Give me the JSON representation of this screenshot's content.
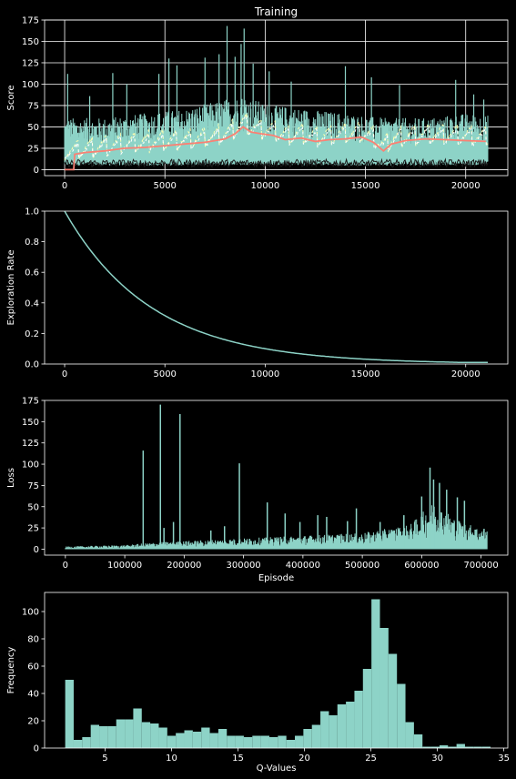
{
  "figure": {
    "title": "Training",
    "colors": {
      "background": "#000000",
      "axes": "#ffffff",
      "grid": "#ffffff",
      "primary": "#8dd3c7",
      "secondary": "#feffb3",
      "moving_average": "#fa8174",
      "minimum": "#1a1a1a"
    }
  },
  "chart_data": [
    {
      "type": "line",
      "title": "Training",
      "xlabel": "",
      "ylabel": "Score",
      "xlim": [
        -1000,
        22100
      ],
      "ylim": [
        -7,
        175
      ],
      "xticks": [
        0,
        5000,
        10000,
        15000,
        20000
      ],
      "yticks": [
        0,
        25,
        50,
        75,
        100,
        125,
        150,
        175
      ],
      "grid": true,
      "series": [
        {
          "role": "score_band",
          "color": "#8dd3c7",
          "x_range": [
            0,
            21100
          ],
          "upper_envelope": [
            [
              0,
              55
            ],
            [
              2000,
              55
            ],
            [
              4000,
              60
            ],
            [
              6000,
              65
            ],
            [
              8000,
              75
            ],
            [
              9000,
              80
            ],
            [
              10000,
              70
            ],
            [
              12000,
              65
            ],
            [
              14000,
              60
            ],
            [
              16000,
              55
            ],
            [
              18000,
              55
            ],
            [
              20000,
              60
            ],
            [
              21100,
              58
            ]
          ],
          "lower_envelope": [
            [
              0,
              8
            ],
            [
              5000,
              8
            ],
            [
              10000,
              9
            ],
            [
              15000,
              8
            ],
            [
              21100,
              9
            ]
          ],
          "spikes": [
            [
              150,
              112
            ],
            [
              1250,
              86
            ],
            [
              2400,
              113
            ],
            [
              3100,
              100
            ],
            [
              4700,
              112
            ],
            [
              5200,
              130
            ],
            [
              5600,
              122
            ],
            [
              7000,
              131
            ],
            [
              7700,
              135
            ],
            [
              8100,
              168
            ],
            [
              8500,
              132
            ],
            [
              8800,
              147
            ],
            [
              8950,
              165
            ],
            [
              9400,
              124
            ],
            [
              10200,
              115
            ],
            [
              11300,
              103
            ],
            [
              14000,
              121
            ],
            [
              15300,
              108
            ],
            [
              16700,
              99
            ],
            [
              19500,
              105
            ],
            [
              20400,
              88
            ],
            [
              20900,
              82
            ]
          ]
        },
        {
          "role": "minimum",
          "color": "#1a1a1a",
          "x_range": [
            0,
            21100
          ],
          "value_range": [
            3,
            12
          ]
        },
        {
          "role": "mean",
          "color": "#feffb3",
          "x_range": [
            0,
            21100
          ],
          "oscillation": [
            20,
            60
          ]
        },
        {
          "role": "median",
          "color": "#ffffff",
          "x_range": [
            0,
            21100
          ],
          "oscillation": [
            18,
            55
          ]
        },
        {
          "role": "moving_average",
          "color": "#fa8174",
          "points": [
            [
              0,
              0
            ],
            [
              450,
              0
            ],
            [
              500,
              18
            ],
            [
              1000,
              20
            ],
            [
              2000,
              22
            ],
            [
              3000,
              25
            ],
            [
              4000,
              26
            ],
            [
              5000,
              28
            ],
            [
              6000,
              30
            ],
            [
              7000,
              32
            ],
            [
              8000,
              36
            ],
            [
              8500,
              42
            ],
            [
              8900,
              50
            ],
            [
              9300,
              44
            ],
            [
              9800,
              42
            ],
            [
              10400,
              40
            ],
            [
              11000,
              35
            ],
            [
              11800,
              37
            ],
            [
              12500,
              33
            ],
            [
              13200,
              35
            ],
            [
              14000,
              36
            ],
            [
              14800,
              38
            ],
            [
              15400,
              32
            ],
            [
              15900,
              22
            ],
            [
              16300,
              30
            ],
            [
              17000,
              34
            ],
            [
              18000,
              36
            ],
            [
              19000,
              35
            ],
            [
              20000,
              34
            ],
            [
              21000,
              33
            ]
          ]
        }
      ]
    },
    {
      "type": "line",
      "xlabel": "",
      "ylabel": "Exploration Rate",
      "xlim": [
        -1000,
        22100
      ],
      "ylim": [
        0.0,
        1.0
      ],
      "xticks": [
        0,
        5000,
        10000,
        15000,
        20000
      ],
      "yticks": [
        0.0,
        0.2,
        0.4,
        0.6,
        0.8,
        1.0
      ],
      "ytick_labels": [
        "0.0",
        "0.2",
        "0.4",
        "0.6",
        "0.8",
        "1.0"
      ],
      "grid": false,
      "series": [
        {
          "color": "#8dd3c7",
          "decay": {
            "start": 1.0,
            "rate_per_episode": 0.99977,
            "floor": 0.01
          },
          "x_range": [
            0,
            21100
          ]
        }
      ]
    },
    {
      "type": "line",
      "xlabel": "Episode",
      "ylabel": "Loss",
      "xlim": [
        -35000,
        745000
      ],
      "ylim": [
        -7,
        175
      ],
      "xticks": [
        0,
        100000,
        200000,
        300000,
        400000,
        500000,
        600000,
        700000
      ],
      "yticks": [
        0,
        25,
        50,
        75,
        100,
        125,
        150,
        175
      ],
      "grid": false,
      "series": [
        {
          "color": "#8dd3c7",
          "x_range": [
            0,
            710000
          ],
          "envelope": [
            [
              0,
              2
            ],
            [
              100000,
              3
            ],
            [
              150000,
              5
            ],
            [
              200000,
              6
            ],
            [
              300000,
              8
            ],
            [
              400000,
              10
            ],
            [
              500000,
              12
            ],
            [
              580000,
              18
            ],
            [
              620000,
              35
            ],
            [
              660000,
              22
            ],
            [
              700000,
              15
            ],
            [
              710000,
              14
            ]
          ],
          "spikes": [
            [
              131000,
              116
            ],
            [
              160000,
              170
            ],
            [
              166000,
              25
            ],
            [
              182000,
              32
            ],
            [
              193000,
              159
            ],
            [
              245000,
              22
            ],
            [
              268000,
              27
            ],
            [
              293000,
              101
            ],
            [
              340000,
              55
            ],
            [
              370000,
              42
            ],
            [
              395000,
              32
            ],
            [
              425000,
              40
            ],
            [
              440000,
              38
            ],
            [
              475000,
              33
            ],
            [
              490000,
              48
            ],
            [
              530000,
              32
            ],
            [
              570000,
              40
            ],
            [
              600000,
              62
            ],
            [
              614000,
              96
            ],
            [
              620000,
              82
            ],
            [
              630000,
              78
            ],
            [
              642000,
              70
            ],
            [
              660000,
              61
            ],
            [
              672000,
              57
            ],
            [
              690000,
              23
            ],
            [
              705000,
              24
            ]
          ]
        }
      ]
    },
    {
      "type": "bar",
      "xlabel": "Q-Values",
      "ylabel": "Frequency",
      "xlim": [
        0.45,
        35.3
      ],
      "ylim": [
        0,
        114
      ],
      "xticks": [
        5,
        10,
        15,
        20,
        25,
        30,
        35
      ],
      "yticks": [
        0,
        20,
        40,
        60,
        80,
        100
      ],
      "grid": false,
      "bin_start": 2.0,
      "bin_width": 0.64,
      "values": [
        50,
        6,
        8,
        17,
        16,
        16,
        21,
        21,
        29,
        19,
        18,
        15,
        9,
        11,
        13,
        12,
        15,
        11,
        14,
        9,
        9,
        8,
        9,
        9,
        8,
        9,
        6,
        9,
        14,
        17,
        27,
        24,
        32,
        34,
        42,
        58,
        109,
        88,
        69,
        47,
        19,
        10,
        1,
        1,
        2,
        1,
        3,
        1,
        1,
        1
      ]
    }
  ]
}
